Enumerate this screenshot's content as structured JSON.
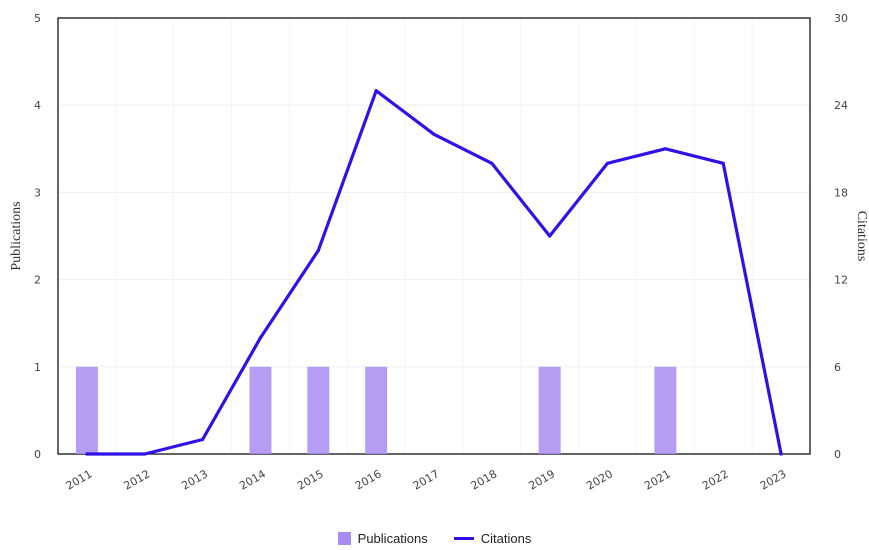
{
  "chart_data": {
    "type": "bar+line",
    "categories": [
      "2011",
      "2012",
      "2013",
      "2014",
      "2015",
      "2016",
      "2017",
      "2018",
      "2019",
      "2020",
      "2021",
      "2022",
      "2023"
    ],
    "series": [
      {
        "name": "Publications",
        "type": "bar",
        "axis": "left",
        "values": [
          1,
          0,
          0,
          1,
          1,
          1,
          0,
          0,
          1,
          0,
          1,
          0,
          0
        ],
        "color": "#a98cf2"
      },
      {
        "name": "Citations",
        "type": "line",
        "axis": "right",
        "values": [
          0,
          0,
          1,
          8,
          14,
          25,
          22,
          20,
          15,
          20,
          21,
          20,
          0
        ],
        "color": "#2e12e8"
      }
    ],
    "ylabel_left": "Publications",
    "ylabel_right": "Citations",
    "ylim_left": [
      0,
      5
    ],
    "ylim_right": [
      0,
      30
    ],
    "yticks_left": [
      0,
      1,
      2,
      3,
      4,
      5
    ],
    "yticks_right": [
      0,
      6,
      12,
      18,
      24,
      30
    ],
    "legend_position": "bottom-center"
  }
}
